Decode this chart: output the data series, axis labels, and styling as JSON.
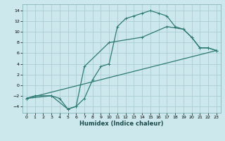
{
  "xlabel": "Humidex (Indice chaleur)",
  "bg_color": "#cce8ec",
  "grid_color": "#aacdd4",
  "line_color": "#2e7a73",
  "xlim": [
    -0.5,
    23.5
  ],
  "ylim": [
    -5.2,
    15.2
  ],
  "xticks": [
    0,
    1,
    2,
    3,
    4,
    5,
    6,
    7,
    8,
    9,
    10,
    11,
    12,
    13,
    14,
    15,
    16,
    17,
    18,
    19,
    20,
    21,
    22,
    23
  ],
  "yticks": [
    -4,
    -2,
    0,
    2,
    4,
    6,
    8,
    10,
    12,
    14
  ],
  "line1_x": [
    0,
    1,
    3,
    4,
    5,
    6,
    7,
    8,
    9,
    10,
    11,
    12,
    13,
    14,
    15,
    16,
    17,
    18,
    19,
    20,
    21,
    22,
    23
  ],
  "line1_y": [
    -2.5,
    -2,
    -2,
    -2.5,
    -4.5,
    -4,
    -2.5,
    1,
    3.5,
    4,
    11,
    12.5,
    13,
    13.5,
    14,
    13.5,
    13,
    11,
    10.5,
    9,
    7,
    7,
    6.5
  ],
  "line2_x": [
    0,
    3,
    5,
    6,
    7,
    10,
    14,
    17,
    19,
    20,
    21,
    22,
    23
  ],
  "line2_y": [
    -2.5,
    -2,
    -4.5,
    -4,
    3.5,
    8,
    9,
    11,
    10.5,
    9,
    7,
    7,
    6.5
  ],
  "line3_x": [
    0,
    23
  ],
  "line3_y": [
    -2.5,
    6.5
  ],
  "marker_size": 3.5,
  "linewidth": 0.9
}
